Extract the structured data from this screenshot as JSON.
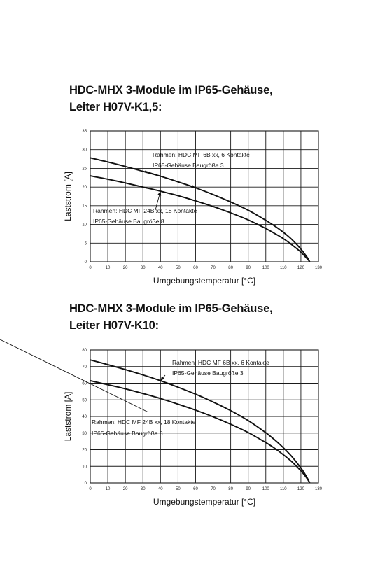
{
  "charts": [
    {
      "title_line1": "HDC-MHX 3-Module im IP65-Gehäuse,",
      "title_line2": "Leiter H07V-K1,5:"
    },
    {
      "title_line1": "HDC-MHX 3-Module im IP65-Gehäuse,",
      "title_line2": "Leiter H07V-K10:"
    }
  ],
  "chart_data": [
    {
      "type": "line",
      "title": "HDC-MHX 3-Module im IP65-Gehäuse, Leiter H07V-K1,5:",
      "xlabel": "Umgebungstemperatur [°C]",
      "ylabel": "Laststrom [A]",
      "xlim": [
        0,
        130
      ],
      "ylim": [
        0,
        35
      ],
      "xticks": [
        0,
        10,
        20,
        30,
        40,
        50,
        60,
        70,
        80,
        90,
        100,
        110,
        120,
        130
      ],
      "yticks": [
        0,
        5,
        10,
        15,
        20,
        25,
        30,
        35
      ],
      "grid": true,
      "series": [
        {
          "label_line1": "Rahmen: HDC MF 6B xx, 6 Kontakte",
          "label_line2": "IP65-Gehäuse Baugröße 3",
          "x": [
            0,
            10,
            20,
            30,
            40,
            50,
            60,
            70,
            80,
            90,
            100,
            105,
            110,
            115,
            120,
            122,
            124,
            125
          ],
          "y": [
            27.8,
            26.7,
            25.5,
            24.2,
            22.9,
            21.4,
            19.8,
            18.0,
            16.0,
            13.8,
            11.1,
            9.6,
            7.9,
            5.9,
            3.4,
            2.2,
            0.9,
            0
          ]
        },
        {
          "label_line1": "Rahmen: HDC MF 24B xx, 18 Kontakte",
          "label_line2": "IP65-Gehäuse Baugröße 8",
          "x": [
            0,
            10,
            20,
            30,
            40,
            50,
            60,
            70,
            80,
            90,
            100,
            105,
            110,
            115,
            120,
            122,
            124,
            125
          ],
          "y": [
            23.0,
            22.1,
            21.1,
            20.0,
            18.9,
            17.7,
            16.3,
            14.8,
            13.1,
            11.2,
            8.9,
            7.6,
            6.2,
            4.5,
            2.6,
            1.6,
            0.6,
            0
          ]
        }
      ]
    },
    {
      "type": "line",
      "title": "HDC-MHX 3-Module im IP65-Gehäuse, Leiter H07V-K10:",
      "xlabel": "Umgebungstemperatur [°C]",
      "ylabel": "Laststrom [A]",
      "xlim": [
        0,
        130
      ],
      "ylim": [
        0,
        80
      ],
      "xticks": [
        0,
        10,
        20,
        30,
        40,
        50,
        60,
        70,
        80,
        90,
        100,
        110,
        120,
        130
      ],
      "yticks": [
        0,
        10,
        20,
        30,
        40,
        50,
        60,
        70,
        80
      ],
      "grid": true,
      "series": [
        {
          "label_line1": "Rahmen: HDC MF 6B xx, 6 Kontakte",
          "label_line2": "IP65-Gehäuse Baugröße 3",
          "x": [
            0,
            10,
            20,
            30,
            40,
            50,
            60,
            70,
            80,
            90,
            100,
            105,
            110,
            115,
            120,
            122,
            124,
            125
          ],
          "y": [
            74.0,
            71.2,
            68.2,
            65.0,
            61.5,
            57.6,
            53.4,
            48.7,
            43.5,
            37.5,
            30.2,
            26.0,
            21.2,
            15.7,
            9.0,
            5.9,
            2.3,
            0
          ]
        },
        {
          "label_line1": "Rahmen: HDC MF 24B xx, 18 Kontakte",
          "label_line2": "IP65-Gehäuse Baugröße 8",
          "x": [
            0,
            10,
            20,
            30,
            40,
            50,
            60,
            70,
            80,
            90,
            100,
            105,
            110,
            115,
            120,
            122,
            124,
            125
          ],
          "y": [
            61.5,
            59.1,
            56.6,
            53.8,
            50.8,
            47.4,
            43.8,
            39.8,
            35.3,
            30.3,
            24.3,
            20.9,
            17.0,
            12.6,
            7.3,
            4.8,
            1.9,
            0
          ]
        }
      ]
    }
  ]
}
